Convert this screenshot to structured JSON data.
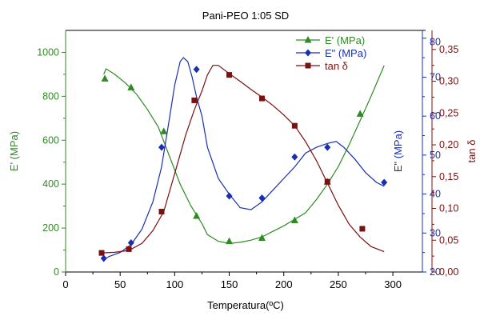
{
  "chart_data": {
    "type": "line",
    "title": "Pani-PEO 1:05 SD",
    "xlabel": "Temperatura(ºC)",
    "xlim": [
      0,
      330
    ],
    "xticks": [
      "0",
      "50",
      "100",
      "150",
      "200",
      "250",
      "300"
    ],
    "grid": false,
    "legend_position": "top-right",
    "axes": [
      {
        "id": "y1",
        "label": "E' (MPa)",
        "color": "#2e8b22",
        "ylim": [
          0,
          1100
        ],
        "ticks": [
          "0",
          "200",
          "400",
          "600",
          "800",
          "1000"
        ]
      },
      {
        "id": "y2",
        "label": "E\" (MPa)",
        "color": "#1a2fb0",
        "ylim": [
          20,
          82
        ],
        "ticks": [
          "20",
          "30",
          "40",
          "50",
          "60",
          "70",
          "80"
        ]
      },
      {
        "id": "y3",
        "label": "tan δ",
        "color": "#7a1010",
        "ylim": [
          0,
          0.38
        ],
        "ticks": [
          "0,00",
          "0,05",
          "0,10",
          "0,15",
          "0,20",
          "0,25",
          "0,30",
          "0,35"
        ]
      }
    ],
    "series": [
      {
        "name": "E' (MPa)",
        "axis": "y1",
        "color": "#2e8b22",
        "marker": "triangle",
        "x": [
          35,
          37,
          45,
          55,
          65,
          75,
          85,
          95,
          105,
          115,
          125,
          130,
          140,
          150,
          160,
          170,
          180,
          190,
          200,
          210,
          220,
          230,
          240,
          250,
          260,
          270,
          280,
          292
        ],
        "y": [
          900,
          925,
          900,
          860,
          810,
          740,
          660,
          530,
          400,
          300,
          220,
          170,
          140,
          130,
          135,
          145,
          160,
          185,
          210,
          240,
          270,
          330,
          400,
          480,
          580,
          690,
          800,
          940
        ],
        "markers_x": [
          36,
          60,
          90,
          120,
          150,
          180,
          210,
          240,
          270
        ],
        "markers_y": [
          880,
          840,
          640,
          255,
          140,
          155,
          235,
          410,
          720
        ]
      },
      {
        "name": "E\" (MPa)",
        "axis": "y2",
        "color": "#1a2fb0",
        "marker": "diamond",
        "x": [
          34,
          40,
          50,
          60,
          70,
          80,
          88,
          95,
          100,
          105,
          108,
          112,
          116,
          120,
          125,
          130,
          140,
          150,
          160,
          170,
          180,
          190,
          200,
          210,
          220,
          230,
          240,
          248,
          255,
          265,
          275,
          285,
          292
        ],
        "y": [
          23,
          24,
          25,
          27,
          31,
          38,
          47,
          59,
          68,
          74,
          75,
          74,
          70,
          65,
          60,
          52,
          44,
          40,
          36.5,
          36,
          38,
          41,
          44,
          47,
          50.5,
          52,
          53,
          53.5,
          52,
          49,
          45.5,
          43,
          42
        ],
        "markers_x": [
          35,
          60,
          88,
          120,
          150,
          180,
          210,
          240,
          292
        ],
        "markers_y": [
          23.5,
          27.5,
          52,
          72,
          39.5,
          39,
          49.5,
          52,
          43
        ]
      },
      {
        "name": "tan δ",
        "axis": "y3",
        "color": "#7a1010",
        "marker": "square",
        "x": [
          32,
          45,
          58,
          70,
          80,
          90,
          100,
          110,
          118,
          125,
          130,
          135,
          140,
          150,
          160,
          170,
          180,
          190,
          200,
          210,
          220,
          230,
          240,
          250,
          260,
          270,
          280,
          292
        ],
        "y": [
          0.03,
          0.031,
          0.034,
          0.045,
          0.065,
          0.095,
          0.155,
          0.215,
          0.255,
          0.285,
          0.31,
          0.325,
          0.325,
          0.312,
          0.3,
          0.287,
          0.275,
          0.262,
          0.247,
          0.23,
          0.205,
          0.175,
          0.14,
          0.105,
          0.075,
          0.055,
          0.04,
          0.032
        ],
        "markers_x": [
          33,
          58,
          88,
          118,
          150,
          180,
          210,
          240,
          272
        ],
        "markers_y": [
          0.03,
          0.036,
          0.095,
          0.27,
          0.31,
          0.273,
          0.23,
          0.142,
          0.068
        ]
      }
    ]
  }
}
